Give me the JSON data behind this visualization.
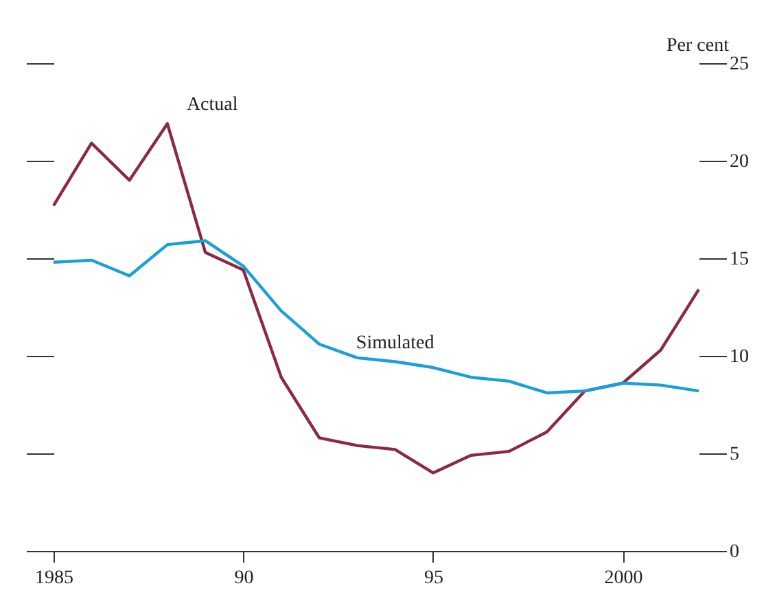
{
  "chart_data": {
    "type": "line",
    "ylabel": "Per cent",
    "x": [
      1985,
      1986,
      1987,
      1988,
      1989,
      1990,
      1991,
      1992,
      1993,
      1994,
      1995,
      1996,
      1997,
      1998,
      1999,
      2000,
      2001,
      2002
    ],
    "series": [
      {
        "name": "Actual",
        "color": "#8b2942",
        "values": [
          17.7,
          20.9,
          19.0,
          21.9,
          15.3,
          14.4,
          8.9,
          5.8,
          5.4,
          5.2,
          4.0,
          4.9,
          5.1,
          6.1,
          8.2,
          8.6,
          10.3,
          13.4
        ]
      },
      {
        "name": "Simulated",
        "color": "#1a9fd8",
        "values": [
          14.8,
          14.9,
          14.1,
          15.7,
          15.9,
          14.6,
          12.3,
          10.6,
          9.9,
          9.7,
          9.4,
          8.9,
          8.7,
          8.1,
          8.2,
          8.6,
          8.5,
          8.2
        ]
      }
    ],
    "xlim": [
      1985,
      2002
    ],
    "xticks": [
      1985,
      {
        "value": 1990,
        "label": "90"
      },
      {
        "value": 1995,
        "label": "95"
      },
      2000
    ],
    "ylim": [
      0,
      25
    ],
    "yticks": [
      0,
      5,
      10,
      15,
      20,
      25
    ],
    "grid": false,
    "legend": false,
    "marker": "none",
    "line_style": "solid"
  }
}
